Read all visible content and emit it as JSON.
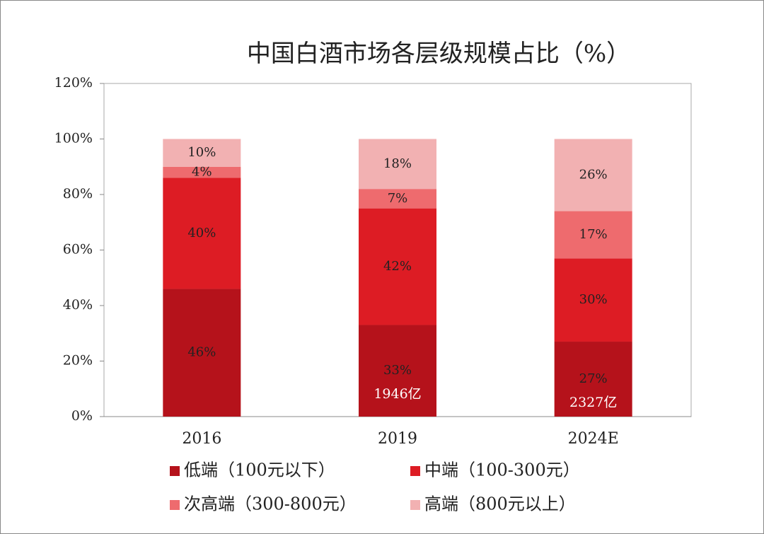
{
  "chart_data": {
    "type": "stacked_bar",
    "title": "中国白酒市场各层级规模占比（%）",
    "categories": [
      "2016",
      "2019",
      "2024E"
    ],
    "series": [
      {
        "name": "低端（100元以下）",
        "color": "#b5121b",
        "values": [
          46,
          33,
          27
        ],
        "value_labels": [
          "46%",
          "33%",
          "27%"
        ]
      },
      {
        "name": "中端（100-300元）",
        "color": "#dd1c24",
        "values": [
          40,
          42,
          30
        ],
        "value_labels": [
          "40%",
          "42%",
          "30%"
        ]
      },
      {
        "name": "次高端（300-800元）",
        "color": "#ee6b6e",
        "values": [
          4,
          7,
          17
        ],
        "value_labels": [
          "4%",
          "7%",
          "17%"
        ]
      },
      {
        "name": "高端（800元以上）",
        "color": "#f2b1b2",
        "values": [
          10,
          18,
          26
        ],
        "value_labels": [
          "10%",
          "18%",
          "26%"
        ]
      }
    ],
    "annotations": [
      {
        "x": "2019",
        "text": "1946亿"
      },
      {
        "x": "2024E",
        "text": "2327亿"
      }
    ],
    "ylim": [
      0,
      120
    ],
    "yticks": [
      {
        "value": 0,
        "label": "0%"
      },
      {
        "value": 20,
        "label": "20%"
      },
      {
        "value": 40,
        "label": "40%"
      },
      {
        "value": 60,
        "label": "60%"
      },
      {
        "value": 80,
        "label": "80%"
      },
      {
        "value": 100,
        "label": "100%"
      },
      {
        "value": 120,
        "label": "120%"
      }
    ],
    "grid": false,
    "legend": "bottom"
  }
}
